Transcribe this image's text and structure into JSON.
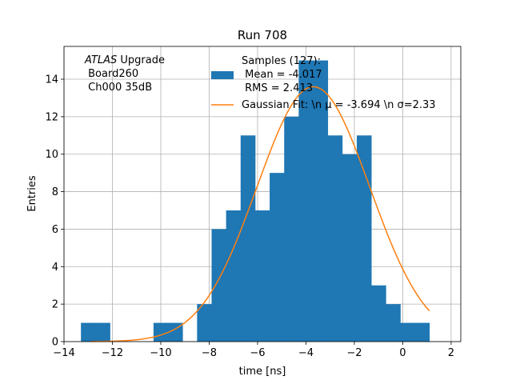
{
  "chart_data": {
    "type": "histogram",
    "title": "Run 708",
    "xlabel": "time [ns]",
    "ylabel": "Entries",
    "xlim": [
      -14,
      2.4
    ],
    "ylim": [
      0,
      15.75
    ],
    "grid": true,
    "x_ticks": [
      -14,
      -12,
      -10,
      -8,
      -6,
      -4,
      -2,
      0,
      2
    ],
    "x_tick_labels": [
      "−14",
      "−12",
      "−10",
      "−8",
      "−6",
      "−4",
      "−2",
      "0",
      "2"
    ],
    "y_ticks": [
      0,
      2,
      4,
      6,
      8,
      10,
      12,
      14
    ],
    "y_tick_labels": [
      "0",
      "2",
      "4",
      "6",
      "8",
      "10",
      "12",
      "14"
    ],
    "bin_width": 0.6,
    "bins": [
      {
        "x0": -13.3,
        "count": 1
      },
      {
        "x0": -12.7,
        "count": 1
      },
      {
        "x0": -10.3,
        "count": 1
      },
      {
        "x0": -9.7,
        "count": 1
      },
      {
        "x0": -8.5,
        "count": 2
      },
      {
        "x0": -7.9,
        "count": 6
      },
      {
        "x0": -7.3,
        "count": 7
      },
      {
        "x0": -6.7,
        "count": 11
      },
      {
        "x0": -6.1,
        "count": 7
      },
      {
        "x0": -5.5,
        "count": 9
      },
      {
        "x0": -4.9,
        "count": 12
      },
      {
        "x0": -4.3,
        "count": 15
      },
      {
        "x0": -3.7,
        "count": 15
      },
      {
        "x0": -3.1,
        "count": 11
      },
      {
        "x0": -2.5,
        "count": 10
      },
      {
        "x0": -1.9,
        "count": 11
      },
      {
        "x0": -1.3,
        "count": 3
      },
      {
        "x0": -0.7,
        "count": 2
      },
      {
        "x0": -0.1,
        "count": 1
      },
      {
        "x0": 0.5,
        "count": 1
      }
    ],
    "fit": {
      "mu": -3.694,
      "sigma": 2.33,
      "amplitude": 13.6,
      "x_range": [
        -12.9,
        1.1
      ]
    },
    "series": [
      {
        "name": "Samples (127):\n Mean = -4.017\n RMS = 2.413",
        "color": "#1f77b4"
      },
      {
        "name": "Gaussian Fit: \\n μ = -3.694 \\n σ=2.33",
        "color": "#ff7f0e"
      }
    ],
    "annotation": {
      "lines": [
        "ATLAS Upgrade",
        " Board260",
        " Ch000 35dB"
      ]
    },
    "legend_position": "upper-center"
  }
}
